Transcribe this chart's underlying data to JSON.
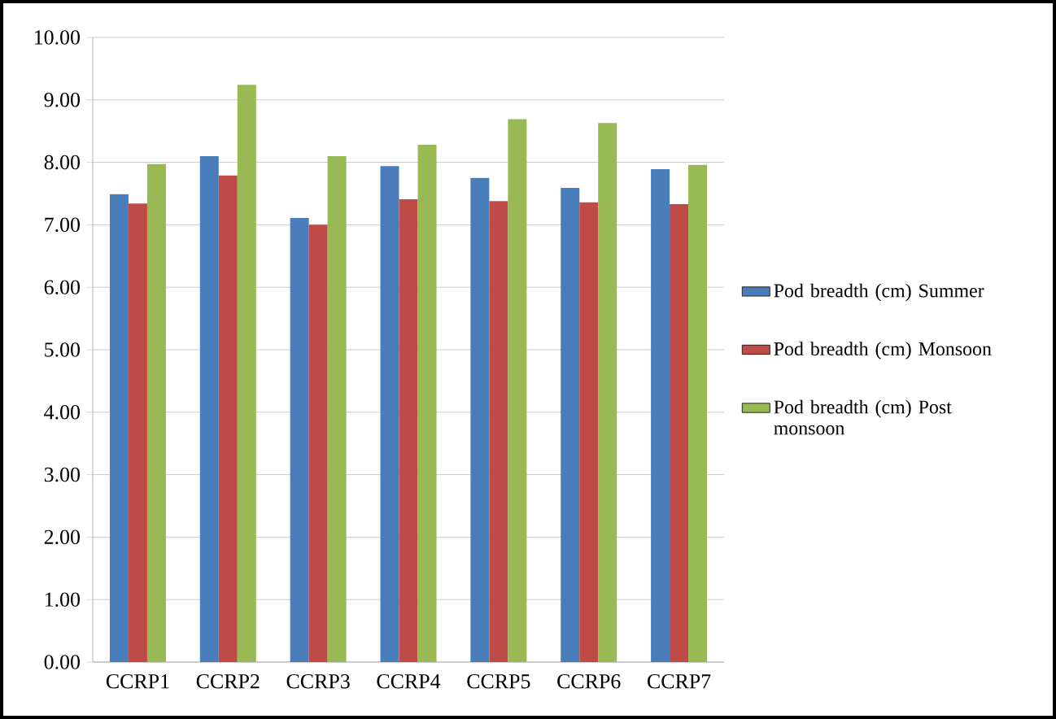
{
  "chart_data": {
    "type": "bar",
    "categories": [
      "CCRP1",
      "CCRP2",
      "CCRP3",
      "CCRP4",
      "CCRP5",
      "CCRP6",
      "CCRP7"
    ],
    "series": [
      {
        "name": "Pod breadth (cm) Summer",
        "color": "#4a7ebb",
        "values": [
          7.49,
          8.1,
          7.11,
          7.94,
          7.75,
          7.59,
          7.89
        ]
      },
      {
        "name": "Pod breadth (cm) Monsoon",
        "color": "#be4b48",
        "values": [
          7.34,
          7.79,
          7.0,
          7.41,
          7.38,
          7.36,
          7.33
        ]
      },
      {
        "name": "Pod breadth (cm) Post monsoon",
        "color": "#98b954",
        "values": [
          7.97,
          9.24,
          8.1,
          8.28,
          8.69,
          8.63,
          7.96
        ]
      }
    ],
    "ylim": [
      0,
      10
    ],
    "yticks": [
      {
        "value": 0,
        "label": "0.00"
      },
      {
        "value": 1,
        "label": "1.00"
      },
      {
        "value": 2,
        "label": "2.00"
      },
      {
        "value": 3,
        "label": "3.00"
      },
      {
        "value": 4,
        "label": "4.00"
      },
      {
        "value": 5,
        "label": "5.00"
      },
      {
        "value": 6,
        "label": "6.00"
      },
      {
        "value": 7,
        "label": "7.00"
      },
      {
        "value": 8,
        "label": "8.00"
      },
      {
        "value": 9,
        "label": "9.00"
      },
      {
        "value": 10,
        "label": "10.00"
      }
    ],
    "grid": "y",
    "legend": "right"
  }
}
